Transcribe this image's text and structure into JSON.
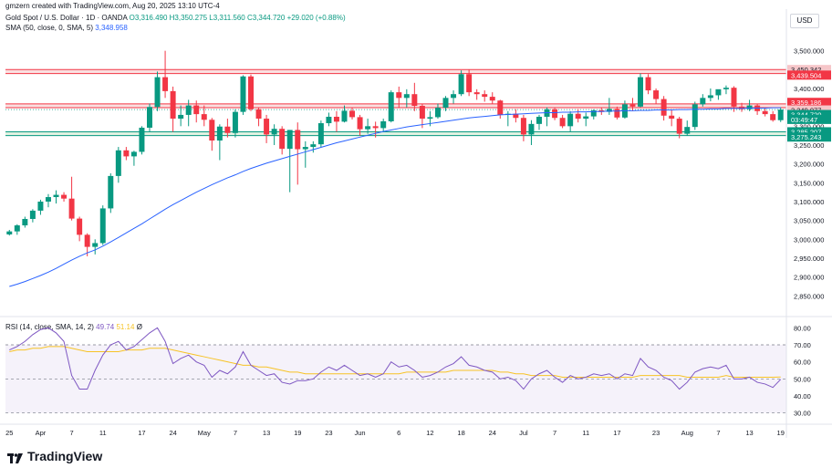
{
  "header": {
    "created_by": "gmzern created with TradingView.com, Aug 20, 2025 13:10 UTC-4",
    "currency": "USD"
  },
  "legend": {
    "title": "Gold Spot / U.S. Dollar · 1D · OANDA",
    "open": "O3,316.490",
    "high": "H3,350.275",
    "low": "L3,311.560",
    "close": "C3,344.720",
    "change": "+29.020 (+0.88%)",
    "sma_label": "SMA (50, close, 0, SMA, 5)",
    "sma_value": "3,348.958",
    "rsi_label": "RSI (14, close, SMA, 14, 2)",
    "rsi_value": "49.74",
    "rsi_ma_value": "51.14",
    "rsi_extra": "Ø"
  },
  "logo": {
    "text": "TradingView",
    "icon": "tradingview-logo-icon"
  },
  "colors": {
    "up": "#089981",
    "down": "#f23645",
    "sma": "#2962ff",
    "rsi": "#7e57c2",
    "rsi_ma": "#f7c325",
    "res_zone": "#f6c6c9",
    "sup_zone": "#c8e6c9"
  },
  "chart_data": [
    {
      "type": "candlestick",
      "ylim": [
        2800,
        3550
      ],
      "y_ticks": [
        "3,500.000",
        "3,450.000",
        "3,400.000",
        "3,350.000",
        "3,300.000",
        "3,250.000",
        "3,200.000",
        "3,150.000",
        "3,100.000",
        "3,050.000",
        "3,000.000",
        "2,950.000",
        "2,900.000",
        "2,850.000"
      ],
      "x_ticks": [
        "25",
        "Apr",
        "7",
        "11",
        "17",
        "24",
        "May",
        "7",
        "13",
        "19",
        "23",
        "Jun",
        "6",
        "12",
        "18",
        "24",
        "Jul",
        "7",
        "11",
        "17",
        "23",
        "Aug",
        "7",
        "13",
        "19"
      ],
      "candles": [
        [
          3013,
          3025,
          3010,
          3021
        ],
        [
          3021,
          3040,
          3012,
          3037
        ],
        [
          3037,
          3060,
          3031,
          3054
        ],
        [
          3054,
          3080,
          3045,
          3076
        ],
        [
          3076,
          3105,
          3065,
          3100
        ],
        [
          3100,
          3120,
          3085,
          3112
        ],
        [
          3112,
          3130,
          3095,
          3118
        ],
        [
          3118,
          3125,
          3100,
          3108
        ],
        [
          3108,
          3166,
          3050,
          3055
        ],
        [
          3055,
          3060,
          2995,
          3012
        ],
        [
          3012,
          3016,
          2955,
          2980
        ],
        [
          2980,
          3000,
          2960,
          2990
        ],
        [
          2990,
          3090,
          2985,
          3082
        ],
        [
          3082,
          3175,
          3070,
          3168
        ],
        [
          3168,
          3245,
          3150,
          3236
        ],
        [
          3236,
          3245,
          3210,
          3220
        ],
        [
          3220,
          3235,
          3195,
          3232
        ],
        [
          3232,
          3300,
          3225,
          3296
        ],
        [
          3296,
          3360,
          3285,
          3351
        ],
        [
          3351,
          3445,
          3340,
          3430
        ],
        [
          3430,
          3500,
          3375,
          3393
        ],
        [
          3393,
          3405,
          3285,
          3320
        ],
        [
          3320,
          3355,
          3300,
          3330
        ],
        [
          3330,
          3370,
          3300,
          3355
        ],
        [
          3355,
          3368,
          3310,
          3332
        ],
        [
          3332,
          3355,
          3300,
          3317
        ],
        [
          3317,
          3322,
          3235,
          3262
        ],
        [
          3262,
          3305,
          3210,
          3299
        ],
        [
          3299,
          3320,
          3270,
          3282
        ],
        [
          3282,
          3345,
          3270,
          3338
        ],
        [
          3338,
          3435,
          3330,
          3432
        ],
        [
          3432,
          3437,
          3340,
          3345
        ],
        [
          3345,
          3350,
          3300,
          3320
        ],
        [
          3320,
          3330,
          3255,
          3278
        ],
        [
          3278,
          3305,
          3250,
          3293
        ],
        [
          3293,
          3300,
          3225,
          3240
        ],
        [
          3240,
          3290,
          3125,
          3290
        ],
        [
          3290,
          3310,
          3145,
          3239
        ],
        [
          3239,
          3260,
          3190,
          3245
        ],
        [
          3245,
          3260,
          3230,
          3252
        ],
        [
          3252,
          3315,
          3245,
          3308
        ],
        [
          3308,
          3336,
          3300,
          3325
        ],
        [
          3325,
          3340,
          3285,
          3312
        ],
        [
          3312,
          3355,
          3310,
          3341
        ],
        [
          3341,
          3350,
          3318,
          3324
        ],
        [
          3324,
          3330,
          3275,
          3292
        ],
        [
          3292,
          3320,
          3280,
          3300
        ],
        [
          3300,
          3312,
          3270,
          3295
        ],
        [
          3295,
          3320,
          3285,
          3313
        ],
        [
          3313,
          3395,
          3310,
          3390
        ],
        [
          3390,
          3405,
          3350,
          3375
        ],
        [
          3375,
          3398,
          3350,
          3385
        ],
        [
          3385,
          3415,
          3340,
          3354
        ],
        [
          3354,
          3360,
          3295,
          3320
        ],
        [
          3320,
          3340,
          3300,
          3324
        ],
        [
          3324,
          3360,
          3320,
          3349
        ],
        [
          3349,
          3380,
          3340,
          3375
        ],
        [
          3375,
          3395,
          3360,
          3385
        ],
        [
          3385,
          3448,
          3380,
          3438
        ],
        [
          3438,
          3450,
          3380,
          3390
        ],
        [
          3390,
          3398,
          3370,
          3385
        ],
        [
          3385,
          3395,
          3365,
          3378
        ],
        [
          3378,
          3390,
          3360,
          3368
        ],
        [
          3368,
          3370,
          3320,
          3330
        ],
        [
          3330,
          3340,
          3300,
          3333
        ],
        [
          3333,
          3345,
          3310,
          3322
        ],
        [
          3322,
          3330,
          3260,
          3278
        ],
        [
          3278,
          3316,
          3250,
          3306
        ],
        [
          3306,
          3330,
          3290,
          3325
        ],
        [
          3325,
          3350,
          3300,
          3345
        ],
        [
          3345,
          3350,
          3316,
          3322
        ],
        [
          3322,
          3330,
          3295,
          3300
        ],
        [
          3300,
          3340,
          3285,
          3333
        ],
        [
          3333,
          3345,
          3310,
          3320
        ],
        [
          3320,
          3336,
          3300,
          3326
        ],
        [
          3326,
          3345,
          3318,
          3342
        ],
        [
          3342,
          3350,
          3330,
          3338
        ],
        [
          3338,
          3375,
          3330,
          3346
        ],
        [
          3346,
          3352,
          3318,
          3323
        ],
        [
          3323,
          3368,
          3320,
          3358
        ],
        [
          3358,
          3375,
          3340,
          3352
        ],
        [
          3352,
          3440,
          3350,
          3430
        ],
        [
          3430,
          3438,
          3385,
          3395
        ],
        [
          3395,
          3400,
          3360,
          3372
        ],
        [
          3372,
          3380,
          3315,
          3328
        ],
        [
          3328,
          3345,
          3300,
          3320
        ],
        [
          3320,
          3325,
          3268,
          3280
        ],
        [
          3280,
          3315,
          3275,
          3298
        ],
        [
          3298,
          3365,
          3290,
          3358
        ],
        [
          3358,
          3385,
          3352,
          3375
        ],
        [
          3375,
          3400,
          3366,
          3382
        ],
        [
          3382,
          3395,
          3370,
          3398
        ],
        [
          3398,
          3408,
          3385,
          3402
        ],
        [
          3402,
          3406,
          3338,
          3352
        ],
        [
          3352,
          3362,
          3338,
          3345
        ],
        [
          3345,
          3370,
          3340,
          3355
        ],
        [
          3355,
          3360,
          3330,
          3340
        ],
        [
          3340,
          3350,
          3326,
          3332
        ],
        [
          3332,
          3340,
          3312,
          3316
        ],
        [
          3316,
          3350,
          3311,
          3344
        ]
      ],
      "sma": [
        2875,
        2881,
        2888,
        2896,
        2904,
        2913,
        2923,
        2934,
        2945,
        2955,
        2964,
        2972,
        2982,
        2993,
        3005,
        3017,
        3029,
        3041,
        3054,
        3067,
        3080,
        3092,
        3103,
        3114,
        3125,
        3135,
        3145,
        3154,
        3163,
        3171,
        3180,
        3188,
        3195,
        3202,
        3208,
        3214,
        3220,
        3226,
        3232,
        3238,
        3244,
        3250,
        3256,
        3261,
        3266,
        3271,
        3276,
        3281,
        3286,
        3290,
        3294,
        3298,
        3301,
        3304,
        3307,
        3310,
        3313,
        3316,
        3319,
        3322,
        3324,
        3326,
        3328,
        3330,
        3331,
        3332,
        3333,
        3334,
        3335,
        3336,
        3336,
        3337,
        3337,
        3338,
        3338,
        3339,
        3339,
        3340,
        3340,
        3341,
        3341,
        3342,
        3342,
        3343,
        3343,
        3343,
        3344,
        3344,
        3345,
        3345,
        3346,
        3346,
        3347,
        3347,
        3347,
        3348,
        3348,
        3348,
        3349,
        3349
      ],
      "levels": {
        "resistance_zone": [
          3439.504,
          3450.342
        ],
        "resistance_labels": [
          "3,450.342",
          "3,439.504"
        ],
        "pivot_zone": [
          3349.077,
          3359.186
        ],
        "pivot_labels": [
          "3,359.186",
          "3,349.077"
        ],
        "support_zone": [
          3275.243,
          3285.207
        ],
        "support_labels": [
          "3,285.207",
          "3,275.243"
        ],
        "last_price_label": "3,344.720",
        "countdown_label": "03:49:47"
      }
    },
    {
      "type": "line",
      "name": "RSI",
      "ylim": [
        25,
        85
      ],
      "y_ticks": [
        "80.00",
        "70.00",
        "60.00",
        "50.00",
        "40.00",
        "30.00"
      ],
      "band": [
        30,
        70
      ],
      "midline": 50,
      "rsi": [
        67,
        69,
        72,
        76,
        79,
        80,
        77,
        72,
        52,
        44,
        44,
        55,
        64,
        70,
        72,
        67,
        69,
        73,
        77,
        80,
        72,
        59,
        62,
        64,
        60,
        58,
        51,
        55,
        53,
        57,
        66,
        58,
        55,
        52,
        53,
        48,
        47,
        49,
        49,
        50,
        54,
        57,
        55,
        58,
        55,
        52,
        53,
        51,
        53,
        60,
        57,
        58,
        55,
        51,
        52,
        54,
        57,
        59,
        63,
        58,
        57,
        55,
        54,
        50,
        51,
        49,
        44,
        50,
        53,
        55,
        51,
        48,
        52,
        50,
        51,
        53,
        52,
        53,
        50,
        53,
        52,
        62,
        57,
        55,
        51,
        49,
        44,
        48,
        54,
        56,
        57,
        56,
        58,
        50,
        50,
        51,
        48,
        47,
        45,
        49.74
      ],
      "rsi_ma": [
        66,
        67,
        67,
        68,
        68,
        69,
        69,
        69,
        68,
        67,
        66,
        66,
        66,
        66,
        66,
        67,
        67,
        67,
        68,
        68,
        68,
        67,
        66,
        65,
        64,
        63,
        62,
        61,
        60,
        59,
        58,
        58,
        57,
        57,
        56,
        55,
        54,
        54,
        53,
        53,
        53,
        53,
        53,
        53,
        53,
        53,
        53,
        53,
        53,
        53,
        53,
        54,
        54,
        54,
        54,
        54,
        54,
        55,
        55,
        55,
        55,
        55,
        55,
        54,
        54,
        53,
        53,
        52,
        52,
        52,
        52,
        51,
        51,
        51,
        51,
        51,
        51,
        51,
        51,
        51,
        51,
        52,
        52,
        52,
        52,
        52,
        52,
        51,
        51,
        51,
        51,
        51,
        52,
        51,
        51,
        51,
        51,
        51,
        51,
        51.14
      ]
    }
  ]
}
